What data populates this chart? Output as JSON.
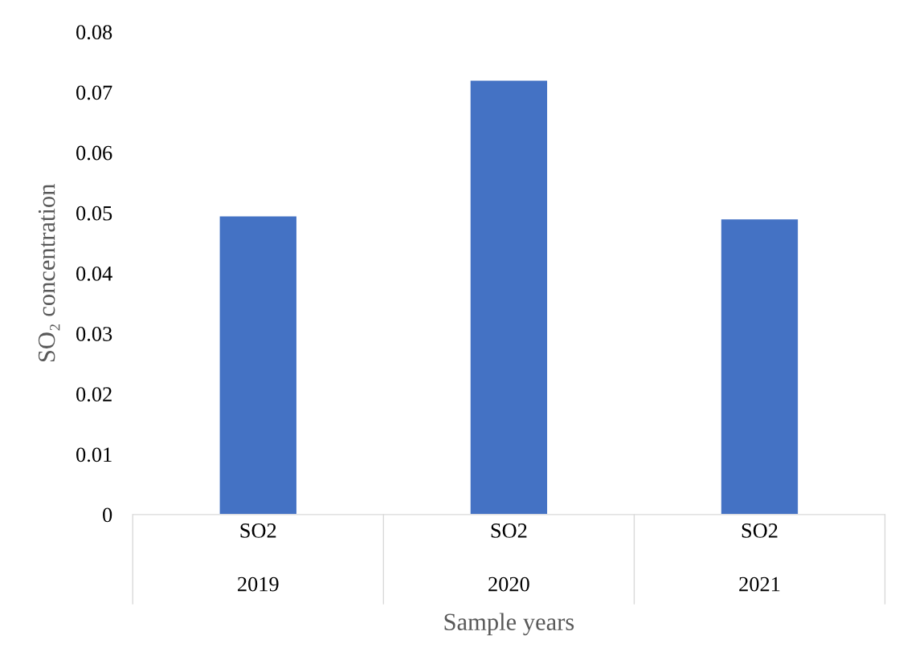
{
  "chart_data": {
    "type": "bar",
    "categories": [
      "SO2\n2019",
      "SO2\n2020",
      "SO2\n2021"
    ],
    "values": [
      0.0495,
      0.072,
      0.049
    ],
    "color": "#4472c4",
    "xlabel": "Sample years",
    "ylabel": "SO₂ concentration",
    "ylim": [
      0,
      0.08
    ],
    "yticks": [
      {
        "value": 0,
        "label": "0"
      },
      0.01,
      0.02,
      0.03,
      0.04,
      0.05,
      0.06,
      0.07,
      0.08
    ],
    "grid": false
  }
}
